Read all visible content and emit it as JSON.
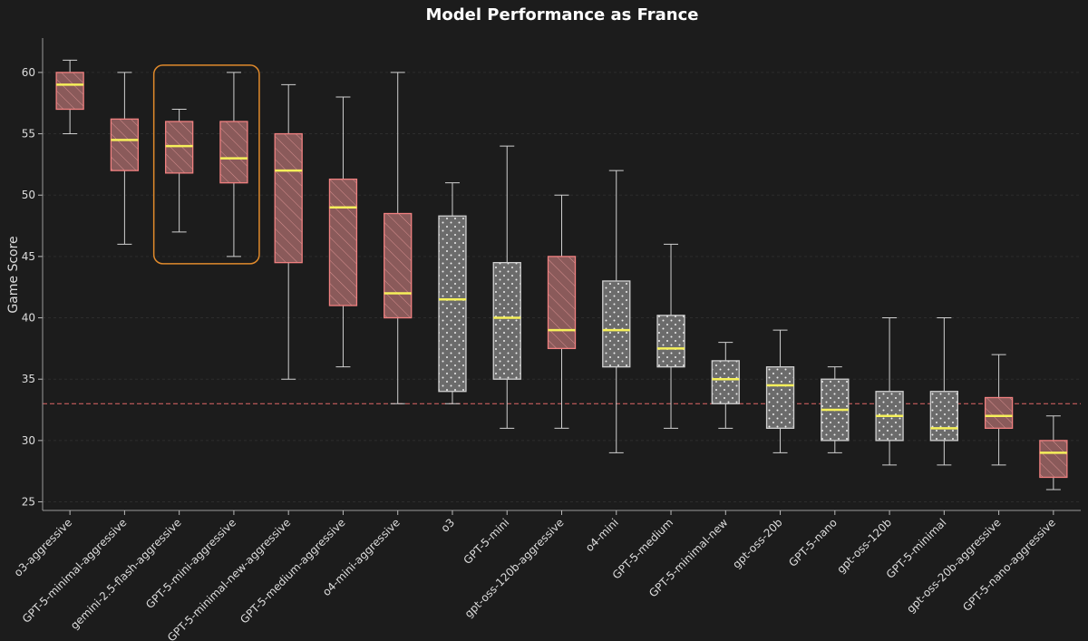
{
  "chart_data": {
    "type": "box",
    "title": "Model Performance as France",
    "xlabel": "",
    "ylabel": "Game Score",
    "ylim": [
      24.3,
      62.8
    ],
    "yticks": [
      25,
      30,
      35,
      40,
      45,
      50,
      55,
      60
    ],
    "grid": true,
    "reference_line": {
      "value": 33,
      "style": "dashed",
      "color": "#e06666"
    },
    "highlight": {
      "from": "gemini-2.5-flash-aggressive",
      "to": "GPT-5-mini-aggressive",
      "color": "#e08a2c"
    },
    "colors": {
      "aggressive_fill": "#8a5a5a",
      "aggressive_edge": "#f08080",
      "normal_fill": "#6b6b6b",
      "normal_edge": "#cfcfcf",
      "median": "#f5f05a",
      "whisker": "#d0d0d0"
    },
    "series": [
      {
        "name": "o3-aggressive",
        "style": "aggressive",
        "min": 55,
        "q1": 57,
        "median": 59,
        "q3": 60,
        "max": 61
      },
      {
        "name": "GPT-5-minimal-aggressive",
        "style": "aggressive",
        "min": 46,
        "q1": 52,
        "median": 54.5,
        "q3": 56.2,
        "max": 60
      },
      {
        "name": "gemini-2.5-flash-aggressive",
        "style": "aggressive",
        "min": 47,
        "q1": 51.8,
        "median": 54,
        "q3": 56,
        "max": 57
      },
      {
        "name": "GPT-5-mini-aggressive",
        "style": "aggressive",
        "min": 45,
        "q1": 51,
        "median": 53,
        "q3": 56,
        "max": 60
      },
      {
        "name": "GPT-5-minimal-new-aggressive",
        "style": "aggressive",
        "min": 35,
        "q1": 44.5,
        "median": 52,
        "q3": 55,
        "max": 59
      },
      {
        "name": "GPT-5-medium-aggressive",
        "style": "aggressive",
        "min": 36,
        "q1": 41,
        "median": 49,
        "q3": 51.3,
        "max": 58
      },
      {
        "name": "o4-mini-aggressive",
        "style": "aggressive",
        "min": 33,
        "q1": 40,
        "median": 42,
        "q3": 48.5,
        "max": 60
      },
      {
        "name": "o3",
        "style": "normal",
        "min": 33,
        "q1": 34,
        "median": 41.5,
        "q3": 48.3,
        "max": 51
      },
      {
        "name": "GPT-5-mini",
        "style": "normal",
        "min": 31,
        "q1": 35,
        "median": 40,
        "q3": 44.5,
        "max": 54
      },
      {
        "name": "gpt-oss-120b-aggressive",
        "style": "aggressive",
        "min": 31,
        "q1": 37.5,
        "median": 39,
        "q3": 45,
        "max": 50
      },
      {
        "name": "o4-mini",
        "style": "normal",
        "min": 29,
        "q1": 36,
        "median": 39,
        "q3": 43,
        "max": 52
      },
      {
        "name": "GPT-5-medium",
        "style": "normal",
        "min": 31,
        "q1": 36,
        "median": 37.5,
        "q3": 40.2,
        "max": 46
      },
      {
        "name": "GPT-5-minimal-new",
        "style": "normal",
        "min": 31,
        "q1": 33,
        "median": 35,
        "q3": 36.5,
        "max": 38
      },
      {
        "name": "gpt-oss-20b",
        "style": "normal",
        "min": 29,
        "q1": 31,
        "median": 34.5,
        "q3": 36,
        "max": 39
      },
      {
        "name": "GPT-5-nano",
        "style": "normal",
        "min": 29,
        "q1": 30,
        "median": 32.5,
        "q3": 35,
        "max": 36
      },
      {
        "name": "gpt-oss-120b",
        "style": "normal",
        "min": 28,
        "q1": 30,
        "median": 32,
        "q3": 34,
        "max": 40
      },
      {
        "name": "GPT-5-minimal",
        "style": "normal",
        "min": 28,
        "q1": 30,
        "median": 31,
        "q3": 34,
        "max": 40
      },
      {
        "name": "gpt-oss-20b-aggressive",
        "style": "aggressive",
        "min": 28,
        "q1": 31,
        "median": 32,
        "q3": 33.5,
        "max": 37
      },
      {
        "name": "GPT-5-nano-aggressive",
        "style": "aggressive",
        "min": 26,
        "q1": 27,
        "median": 29,
        "q3": 30,
        "max": 32
      }
    ]
  }
}
